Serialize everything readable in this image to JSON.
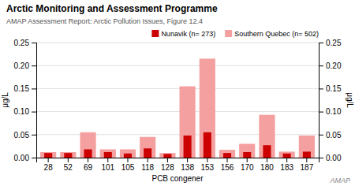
{
  "chart_data": {
    "type": "bar",
    "title": "Arctic Monitoring and Assessment Programme",
    "subtitle": "AMAP Assessment Report: Arctic Pollution Issues, Figure 12.4",
    "xlabel": "PCB congener",
    "ylabel": "μg/L",
    "y2label": "μg/L",
    "annotations": [
      "AMAP"
    ],
    "categories": [
      "28",
      "52",
      "69",
      "101",
      "105",
      "118",
      "128",
      "138",
      "153",
      "156",
      "170",
      "180",
      "183",
      "187"
    ],
    "series": [
      {
        "name": "Nunavik (n= 273)",
        "color": "#cc0000",
        "values": [
          0.01,
          0.01,
          0.018,
          0.012,
          0.009,
          0.02,
          0.008,
          0.048,
          0.055,
          0.01,
          0.012,
          0.027,
          0.009,
          0.013
        ]
      },
      {
        "name": "Southern Quebec (n= 502)",
        "color": "#f4a0a0",
        "values": [
          0.012,
          0.012,
          0.055,
          0.018,
          0.018,
          0.045,
          0.01,
          0.155,
          0.215,
          0.017,
          0.03,
          0.093,
          0.013,
          0.048
        ]
      }
    ],
    "ylim": [
      0,
      0.25
    ],
    "yticks": [
      {
        "value": 0,
        "label": "0.00"
      },
      {
        "value": 0.05,
        "label": "0.05"
      },
      {
        "value": 0.1,
        "label": "0.10"
      },
      {
        "value": 0.15,
        "label": "0.15"
      },
      {
        "value": 0.2,
        "label": "0.20"
      },
      {
        "value": 0.25,
        "label": "0.25"
      }
    ],
    "y2lim": [
      0,
      0.25
    ],
    "y2ticks": [
      {
        "value": 0,
        "label": "0.00"
      },
      {
        "value": 0.05,
        "label": "0.05"
      },
      {
        "value": 0.1,
        "label": "0.10"
      },
      {
        "value": 0.15,
        "label": "0.15"
      },
      {
        "value": 0.2,
        "label": "0.20"
      },
      {
        "value": 0.25,
        "label": "0.25"
      }
    ],
    "grid": true,
    "legend": "upper right"
  }
}
